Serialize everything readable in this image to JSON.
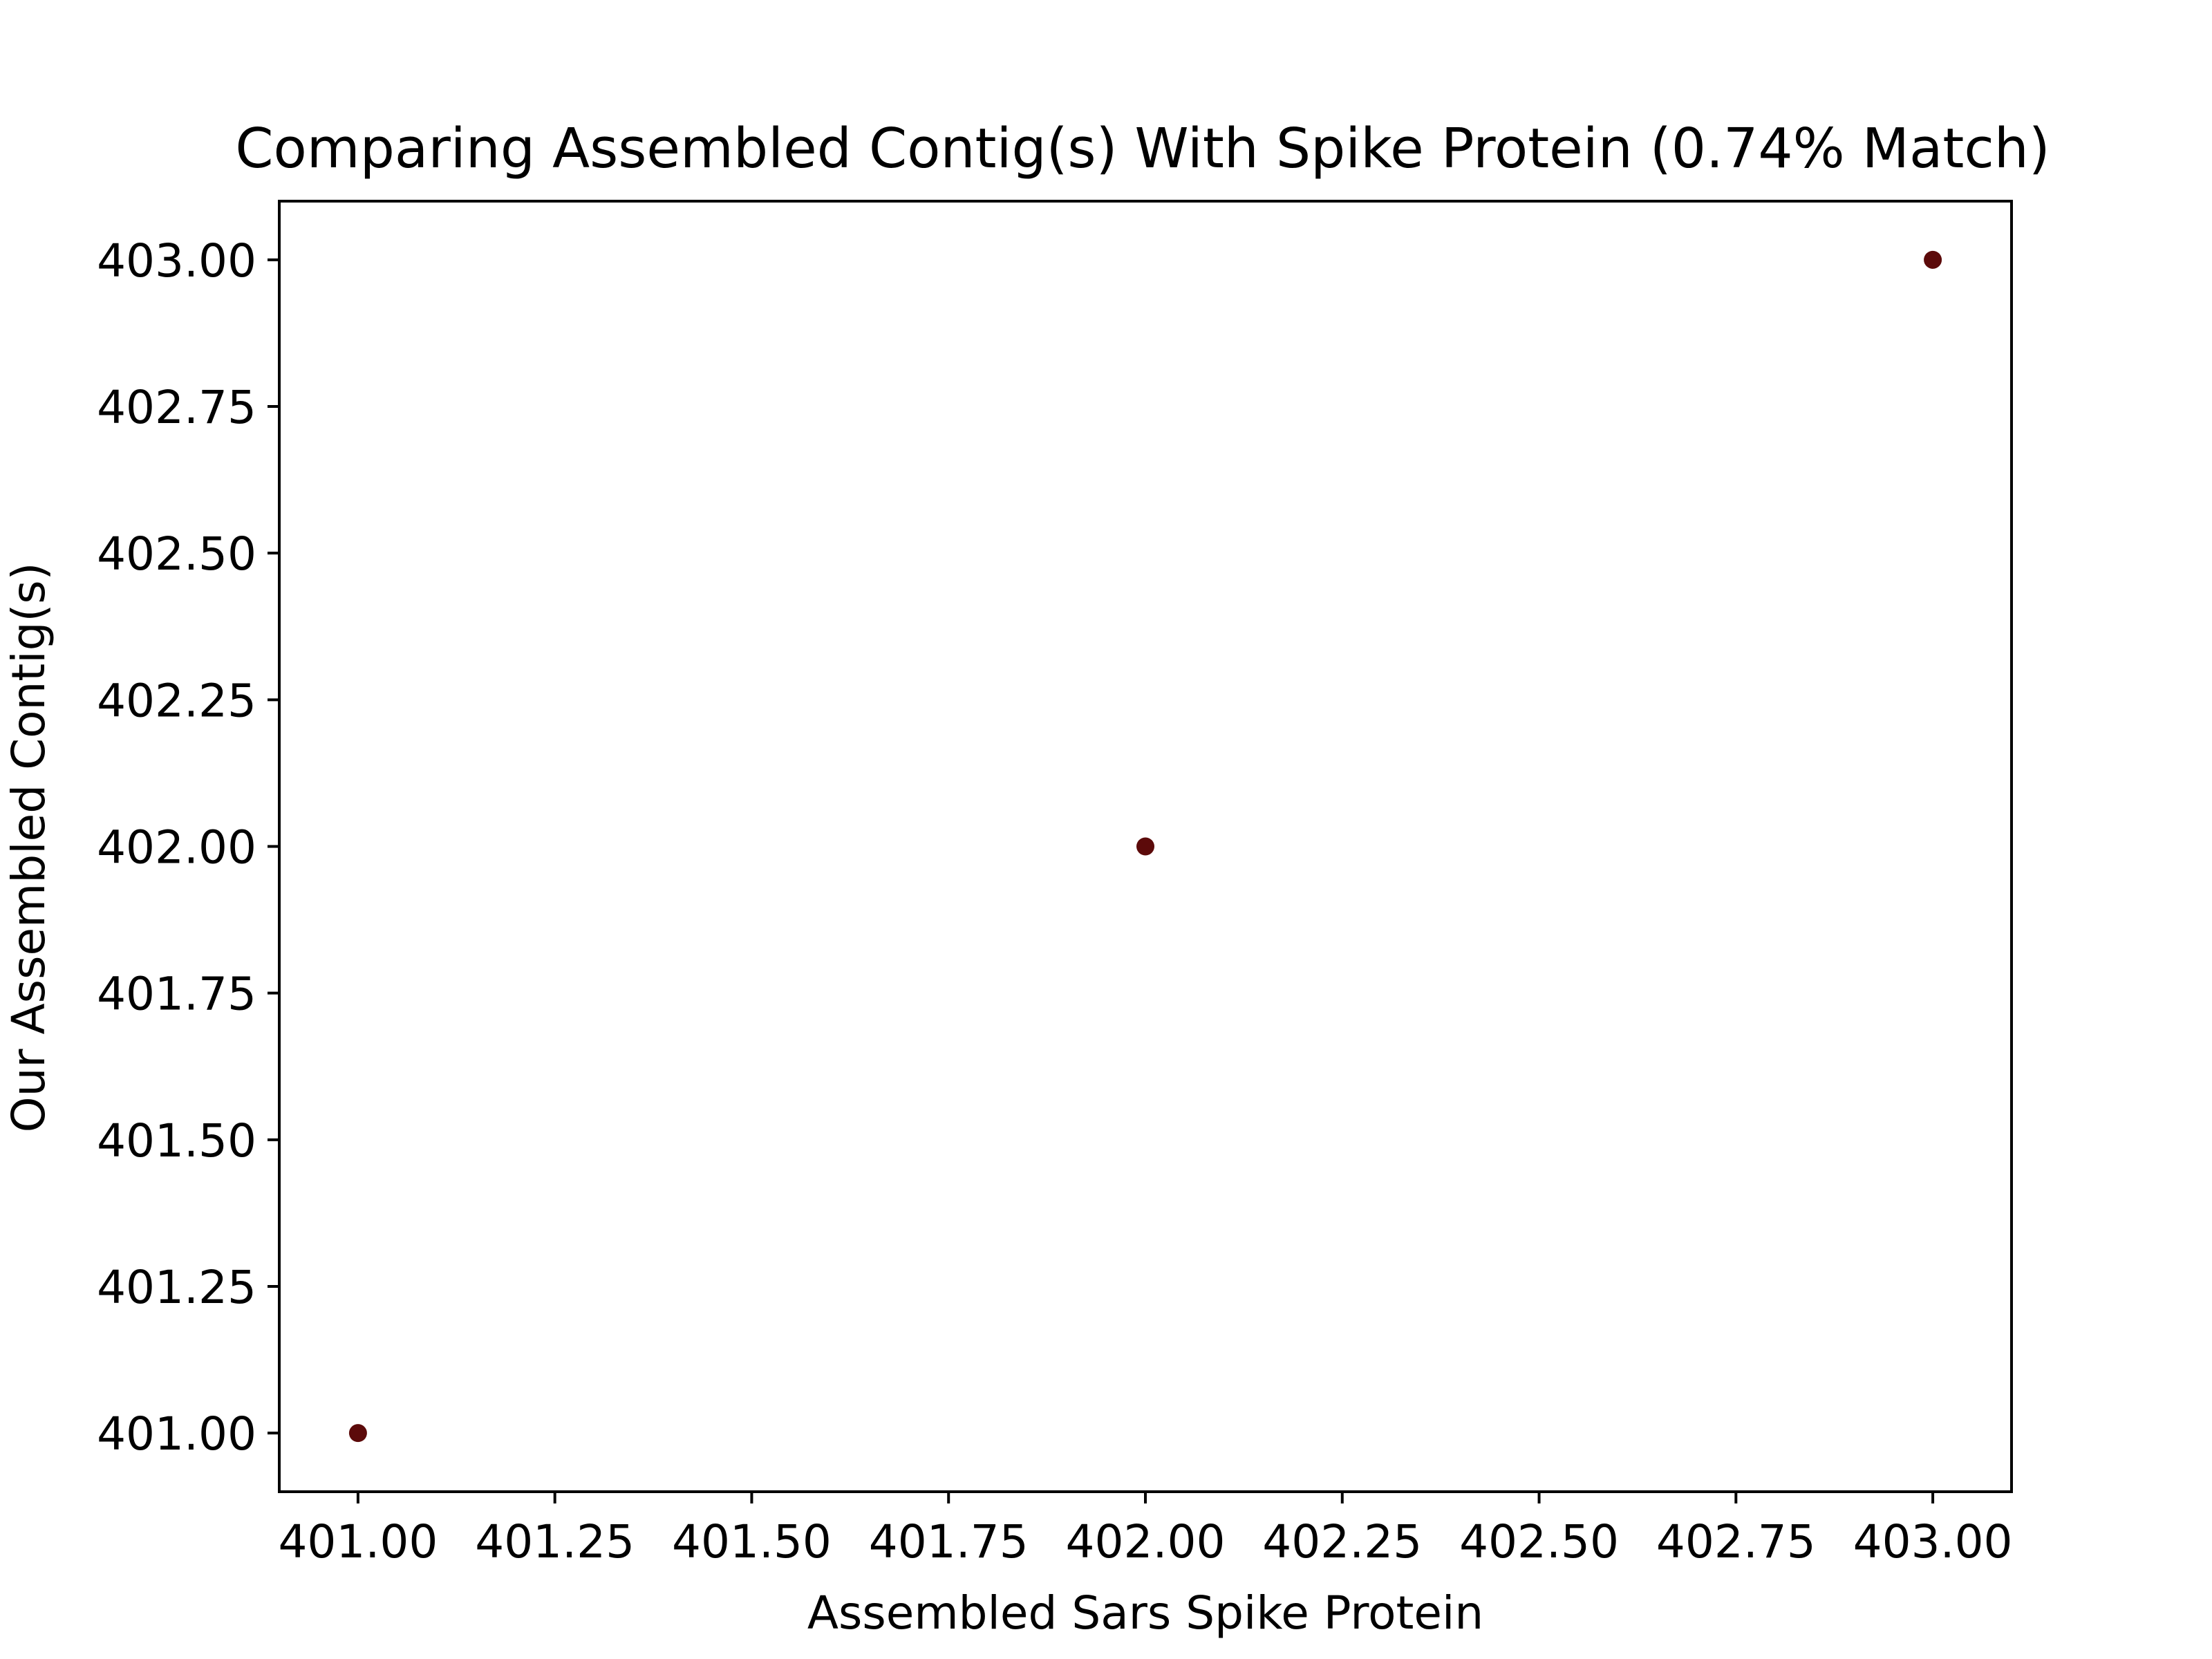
{
  "chart_data": {
    "type": "scatter",
    "title": "Comparing Assembled Contig(s) With Spike Protein (0.74% Match)",
    "xlabel": "Assembled Sars Spike Protein",
    "ylabel": "Our Assembled Contig(s)",
    "xlim": [
      400.9,
      403.1
    ],
    "ylim": [
      400.9,
      403.1
    ],
    "x_ticks": [
      "401.00",
      "401.25",
      "401.50",
      "401.75",
      "402.00",
      "402.25",
      "402.50",
      "402.75",
      "403.00"
    ],
    "y_ticks": [
      "401.00",
      "401.25",
      "401.50",
      "401.75",
      "402.00",
      "402.25",
      "402.50",
      "402.75",
      "403.00"
    ],
    "x": [
      401,
      402,
      403
    ],
    "y": [
      401,
      402,
      403
    ],
    "marker_color": "#5c0a0a",
    "grid": false,
    "legend": "none"
  }
}
